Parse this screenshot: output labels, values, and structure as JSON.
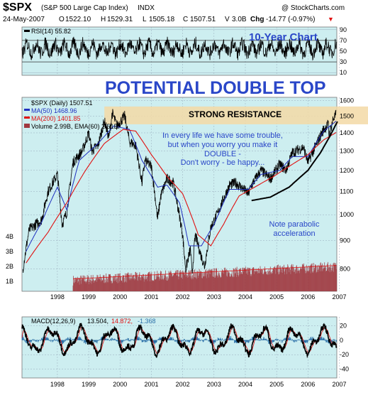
{
  "header": {
    "symbol": "$SPX",
    "name": "(S&P 500 Large Cap Index)",
    "exchange": "INDX",
    "watermark": "@ StockCharts.com",
    "date": "24-May-2007",
    "open_label": "O",
    "open": "1522.10",
    "high_label": "H",
    "high": "1529.31",
    "low_label": "L",
    "low": "1505.18",
    "close_label": "C",
    "close": "1507.51",
    "volume_label": "V",
    "volume": "3.0B",
    "change_label": "Chg",
    "change": "-14.77 (-0.97%)"
  },
  "colors": {
    "panel_bg": "#cdeef0",
    "resistance_band": "#f3d9a6",
    "price": "#000000",
    "ma50": "#1f2fbf",
    "ma200": "#e01010",
    "volume": "#a0383f",
    "annotation_blue": "#2a47c8",
    "macd_signal": "#e01010",
    "macd_hist": "#2b70a8"
  },
  "rsi_panel": {
    "label": "RSI(14) 55.82",
    "chart_label": "10-Year Chart",
    "ticks": [
      "90",
      "70",
      "50",
      "30",
      "10"
    ]
  },
  "price_panel": {
    "headline": "POTENTIAL DOUBLE TOP",
    "legend": {
      "price": "$SPX (Daily) 1507.51",
      "ma50": "MA(50) 1468.96",
      "ma200": "MA(200) 1401.85",
      "volume": "Volume 2.99B, EMA(60) 2.51B"
    },
    "resistance_label": "STRONG RESISTANCE",
    "quote": [
      "In every life we have some trouble,",
      "but when you worry you make it",
      "DOUBLE -",
      "Don't worry - be happy..."
    ],
    "note": [
      "Note parabolic",
      "acceleration"
    ],
    "volume_ticks": [
      "4B",
      "3B",
      "2B",
      "1B"
    ]
  },
  "macd_panel": {
    "label": "MACD(12,26,9)",
    "macd": "13.504,",
    "signal": "14.872,",
    "hist": "-1.368",
    "ticks": [
      "20",
      "0",
      "-20",
      "-40"
    ]
  },
  "chart_data": {
    "type": "line",
    "title": "$SPX (S&P 500 Large Cap Index)",
    "x_axis_years": [
      "1998",
      "1999",
      "2000",
      "2001",
      "2002",
      "2003",
      "2004",
      "2005",
      "2006",
      "2007"
    ],
    "price_axis": {
      "ticks": [
        800,
        900,
        1000,
        1100,
        1200,
        1300,
        1400,
        1500,
        1600
      ],
      "ylim": [
        730,
        1620
      ],
      "scale": "log"
    },
    "rsi_axis": {
      "ticks": [
        90,
        70,
        50,
        30,
        10
      ],
      "ylim": [
        5,
        95
      ]
    },
    "macd_axis": {
      "ticks": [
        20,
        0,
        -20,
        -40
      ],
      "ylim": [
        -52,
        32
      ]
    },
    "series": [
      {
        "name": "$SPX (Daily)",
        "points": [
          [
            1997.4,
            800
          ],
          [
            1997.6,
            940
          ],
          [
            1997.8,
            960
          ],
          [
            1998.0,
            980
          ],
          [
            1998.2,
            1100
          ],
          [
            1998.5,
            1180
          ],
          [
            1998.65,
            960
          ],
          [
            1998.8,
            1010
          ],
          [
            1999.0,
            1240
          ],
          [
            1999.3,
            1300
          ],
          [
            1999.5,
            1400
          ],
          [
            1999.6,
            1300
          ],
          [
            1999.8,
            1330
          ],
          [
            2000.0,
            1470
          ],
          [
            2000.15,
            1370
          ],
          [
            2000.25,
            1520
          ],
          [
            2000.4,
            1440
          ],
          [
            2000.65,
            1500
          ],
          [
            2000.8,
            1350
          ],
          [
            2001.0,
            1330
          ],
          [
            2001.2,
            1140
          ],
          [
            2001.3,
            1250
          ],
          [
            2001.5,
            1220
          ],
          [
            2001.7,
            980
          ],
          [
            2001.8,
            1080
          ],
          [
            2002.0,
            1160
          ],
          [
            2002.2,
            1140
          ],
          [
            2002.5,
            920
          ],
          [
            2002.55,
            850
          ],
          [
            2002.6,
            800
          ],
          [
            2002.75,
            870
          ],
          [
            2002.8,
            780
          ],
          [
            2002.9,
            920
          ],
          [
            2003.1,
            840
          ],
          [
            2003.2,
            810
          ],
          [
            2003.4,
            950
          ],
          [
            2003.6,
            1000
          ],
          [
            2004.0,
            1130
          ],
          [
            2004.2,
            1140
          ],
          [
            2004.6,
            1090
          ],
          [
            2004.7,
            1130
          ],
          [
            2005.0,
            1200
          ],
          [
            2005.3,
            1160
          ],
          [
            2005.6,
            1230
          ],
          [
            2005.8,
            1200
          ],
          [
            2006.0,
            1290
          ],
          [
            2006.35,
            1320
          ],
          [
            2006.5,
            1240
          ],
          [
            2006.7,
            1310
          ],
          [
            2007.0,
            1420
          ],
          [
            2007.15,
            1450
          ],
          [
            2007.17,
            1380
          ],
          [
            2007.3,
            1480
          ],
          [
            2007.4,
            1510
          ]
        ]
      },
      {
        "name": "MA(50)",
        "points": [
          [
            1997.5,
            860
          ],
          [
            1998.0,
            970
          ],
          [
            1998.5,
            1120
          ],
          [
            1998.8,
            1020
          ],
          [
            1999.2,
            1250
          ],
          [
            1999.8,
            1340
          ],
          [
            2000.3,
            1440
          ],
          [
            2000.8,
            1420
          ],
          [
            2001.2,
            1250
          ],
          [
            2001.7,
            1120
          ],
          [
            2002.0,
            1130
          ],
          [
            2002.4,
            1050
          ],
          [
            2002.7,
            880
          ],
          [
            2003.1,
            880
          ],
          [
            2003.5,
            960
          ],
          [
            2004.0,
            1110
          ],
          [
            2004.6,
            1110
          ],
          [
            2005.0,
            1180
          ],
          [
            2005.6,
            1200
          ],
          [
            2006.0,
            1270
          ],
          [
            2006.5,
            1270
          ],
          [
            2007.0,
            1410
          ],
          [
            2007.4,
            1469
          ]
        ]
      },
      {
        "name": "MA(200)",
        "points": [
          [
            1997.5,
            820
          ],
          [
            1998.2,
            930
          ],
          [
            1998.8,
            1050
          ],
          [
            1999.4,
            1200
          ],
          [
            2000.0,
            1340
          ],
          [
            2000.6,
            1420
          ],
          [
            2001.0,
            1410
          ],
          [
            2001.5,
            1280
          ],
          [
            2002.0,
            1170
          ],
          [
            2002.5,
            1090
          ],
          [
            2003.0,
            920
          ],
          [
            2003.4,
            880
          ],
          [
            2003.8,
            960
          ],
          [
            2004.3,
            1080
          ],
          [
            2004.8,
            1120
          ],
          [
            2005.4,
            1170
          ],
          [
            2006.0,
            1230
          ],
          [
            2006.5,
            1280
          ],
          [
            2007.0,
            1360
          ],
          [
            2007.4,
            1402
          ]
        ]
      }
    ],
    "resistance_zone": [
      1450,
      1560
    ],
    "parabolic_curve": [
      [
        2004.7,
        1060
      ],
      [
        2005.3,
        1075
      ],
      [
        2005.9,
        1120
      ],
      [
        2006.5,
        1200
      ],
      [
        2006.9,
        1290
      ],
      [
        2007.2,
        1380
      ],
      [
        2007.45,
        1470
      ]
    ],
    "volume_range_B": [
      0.5,
      3.5
    ],
    "rsi_last": 55.82,
    "macd_last": {
      "macd": 13.504,
      "signal": 14.872,
      "histogram": -1.368
    }
  }
}
